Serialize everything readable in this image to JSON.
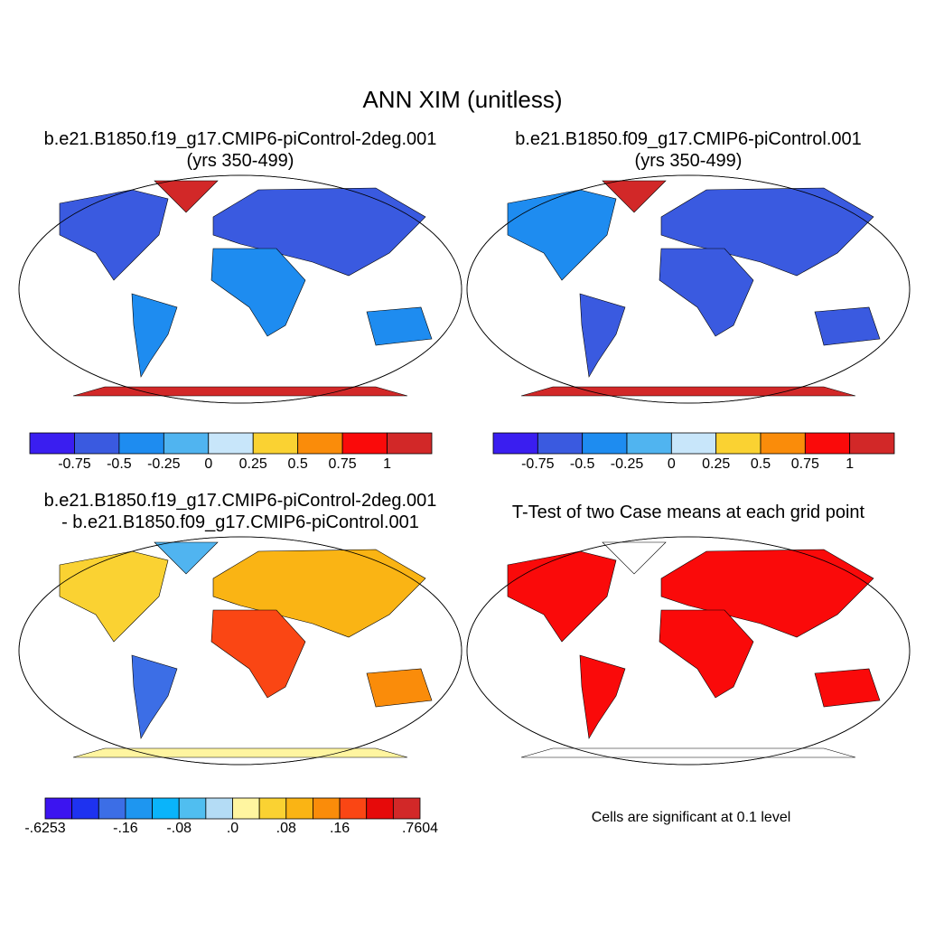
{
  "title": "ANN XIM (unitless)",
  "panels": [
    {
      "title": [
        "b.e21.B1850.f19_g17.CMIP6-piControl-2deg.001",
        "(yrs 350-499)"
      ],
      "colorbar": {
        "colors": [
          "#3a1ef0",
          "#3a5ae0",
          "#1e8cf0",
          "#50b4f0",
          "#c8e6fa",
          "#fad232",
          "#fa8c0a",
          "#fa0a0a",
          "#d22828"
        ],
        "labels": [
          -0.75,
          -0.5,
          -0.25,
          0,
          0.25,
          0.5,
          0.75,
          1
        ]
      }
    },
    {
      "title": [
        "b.e21.B1850.f09_g17.CMIP6-piControl.001",
        "(yrs 350-499)"
      ],
      "colorbar": {
        "colors": [
          "#3a1ef0",
          "#3a5ae0",
          "#1e8cf0",
          "#50b4f0",
          "#c8e6fa",
          "#fad232",
          "#fa8c0a",
          "#fa0a0a",
          "#d22828"
        ],
        "labels": [
          -0.75,
          -0.5,
          -0.25,
          0,
          0.25,
          0.5,
          0.75,
          1
        ]
      }
    },
    {
      "title": [
        "b.e21.B1850.f19_g17.CMIP6-piControl-2deg.001",
        "- b.e21.B1850.f09_g17.CMIP6-piControl.001"
      ],
      "colorbar": {
        "colors": [
          "#3c14f0",
          "#1e32f0",
          "#3c6ee6",
          "#1e96f0",
          "#0ab4fa",
          "#50bef0",
          "#b4dcf5",
          "#fff5a0",
          "#fad232",
          "#fab414",
          "#fa8c0a",
          "#fa4614",
          "#e60a0a",
          "#d22828"
        ],
        "labels": [
          "-.6253",
          "-.16",
          "-.08",
          ".0",
          ".08",
          ".16",
          ".7604"
        ]
      }
    },
    {
      "title": [
        "T-Test of two Case means at each grid point"
      ],
      "note": "Cells are significant at 0.1 level"
    }
  ]
}
